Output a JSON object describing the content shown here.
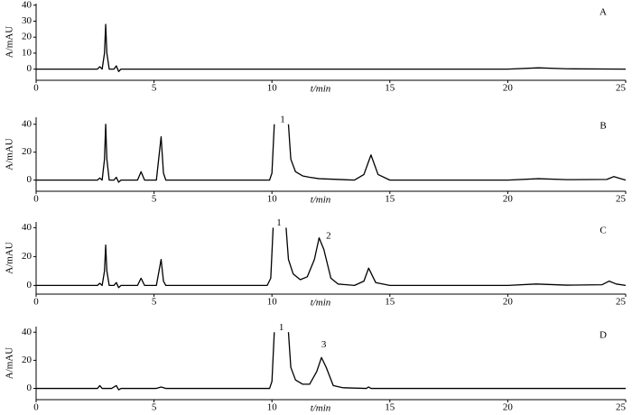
{
  "chart_data": [
    {
      "type": "line",
      "label": "A",
      "xlabel": "t/min",
      "ylabel": "A/mAU",
      "color": "#000000",
      "xlim": [
        0,
        25
      ],
      "xticks": [
        0,
        5,
        10,
        15,
        20,
        25
      ],
      "ylim": [
        -7,
        41
      ],
      "yticks": [
        0,
        10,
        20,
        30,
        40
      ],
      "annotations": [],
      "x": [
        0,
        2.6,
        2.7,
        2.8,
        2.9,
        2.95,
        3.0,
        3.1,
        3.3,
        3.4,
        3.5,
        3.6,
        10,
        20,
        21.3,
        22.5,
        25
      ],
      "values": [
        0,
        0,
        1.5,
        0,
        10,
        28,
        10,
        0,
        0,
        2,
        -1.5,
        0,
        0,
        0,
        0.8,
        0.2,
        0
      ]
    },
    {
      "type": "line",
      "label": "B",
      "xlabel": "t/min",
      "ylabel": "A/mAU",
      "color": "#000000",
      "xlim": [
        0,
        25
      ],
      "xticks": [
        0,
        5,
        10,
        15,
        20,
        25
      ],
      "ylim": [
        -8,
        45
      ],
      "yticks": [
        0,
        20,
        40
      ],
      "annotations": [
        "1"
      ],
      "x": [
        0,
        2.6,
        2.7,
        2.8,
        2.9,
        2.95,
        3.0,
        3.1,
        3.3,
        3.4,
        3.5,
        3.6,
        4.3,
        4.45,
        4.6,
        5.1,
        5.3,
        5.4,
        5.5,
        9.9,
        10.0,
        10.1,
        10.4,
        10.7,
        10.8,
        11.0,
        11.3,
        11.6,
        12,
        13.5,
        13.9,
        14.2,
        14.5,
        15,
        20,
        21.3,
        22.5,
        24.2,
        24.5,
        24.8,
        25
      ],
      "values": [
        0,
        0,
        1.5,
        0,
        15,
        40,
        15,
        0,
        0,
        2,
        -1.5,
        0,
        0,
        6,
        0,
        0,
        31,
        5,
        0,
        0,
        5,
        40,
        null,
        40,
        15,
        6,
        3,
        2,
        1,
        0,
        4,
        18,
        4,
        0,
        0,
        1,
        0.3,
        0.5,
        2.5,
        1,
        0
      ]
    },
    {
      "type": "line",
      "label": "C",
      "xlabel": "t/min",
      "ylabel": "A/mAU",
      "color": "#000000",
      "xlim": [
        0,
        25
      ],
      "xticks": [
        0,
        5,
        10,
        15,
        20,
        25
      ],
      "ylim": [
        -6,
        44
      ],
      "yticks": [
        0,
        20,
        40
      ],
      "annotations": [
        "1",
        "2"
      ],
      "x": [
        0,
        2.6,
        2.7,
        2.8,
        2.9,
        2.95,
        3.0,
        3.1,
        3.3,
        3.4,
        3.5,
        3.6,
        4.3,
        4.45,
        4.6,
        5.1,
        5.3,
        5.4,
        5.5,
        9.8,
        9.95,
        10.05,
        10.35,
        10.6,
        10.7,
        10.9,
        11.2,
        11.5,
        11.8,
        12.0,
        12.2,
        12.5,
        12.8,
        13.5,
        13.9,
        14.1,
        14.4,
        15,
        20,
        21.2,
        22.5,
        24.0,
        24.3,
        24.6,
        25
      ],
      "values": [
        0,
        0,
        1.5,
        0,
        10,
        28,
        10,
        0,
        0,
        2,
        -1.5,
        0,
        0,
        5,
        0,
        0,
        18,
        3,
        0,
        0,
        5,
        40,
        null,
        40,
        18,
        8,
        4,
        6,
        18,
        33,
        25,
        5,
        1,
        0,
        3,
        12,
        2,
        0,
        0,
        1,
        0.2,
        0.5,
        3,
        1,
        0
      ]
    },
    {
      "type": "line",
      "label": "D",
      "xlabel": "t/min",
      "ylabel": "A/mAU",
      "color": "#000000",
      "xlim": [
        0,
        25
      ],
      "xticks": [
        0,
        5,
        10,
        15,
        20,
        25
      ],
      "ylim": [
        -8,
        44
      ],
      "yticks": [
        0,
        20,
        40
      ],
      "annotations": [
        "1",
        "3"
      ],
      "x": [
        0,
        2.6,
        2.7,
        2.8,
        3.2,
        3.4,
        3.5,
        3.6,
        5.1,
        5.3,
        5.5,
        9.9,
        10.0,
        10.1,
        10.4,
        10.7,
        10.8,
        11.0,
        11.3,
        11.6,
        11.9,
        12.1,
        12.3,
        12.6,
        13,
        14.0,
        14.1,
        14.2,
        20,
        25
      ],
      "values": [
        0,
        0,
        2,
        0,
        0,
        2,
        -1,
        0,
        0,
        1,
        0,
        0,
        5,
        40,
        null,
        40,
        15,
        6,
        3,
        3,
        12,
        22,
        15,
        2,
        0.5,
        0,
        1,
        0,
        0,
        0
      ]
    }
  ]
}
